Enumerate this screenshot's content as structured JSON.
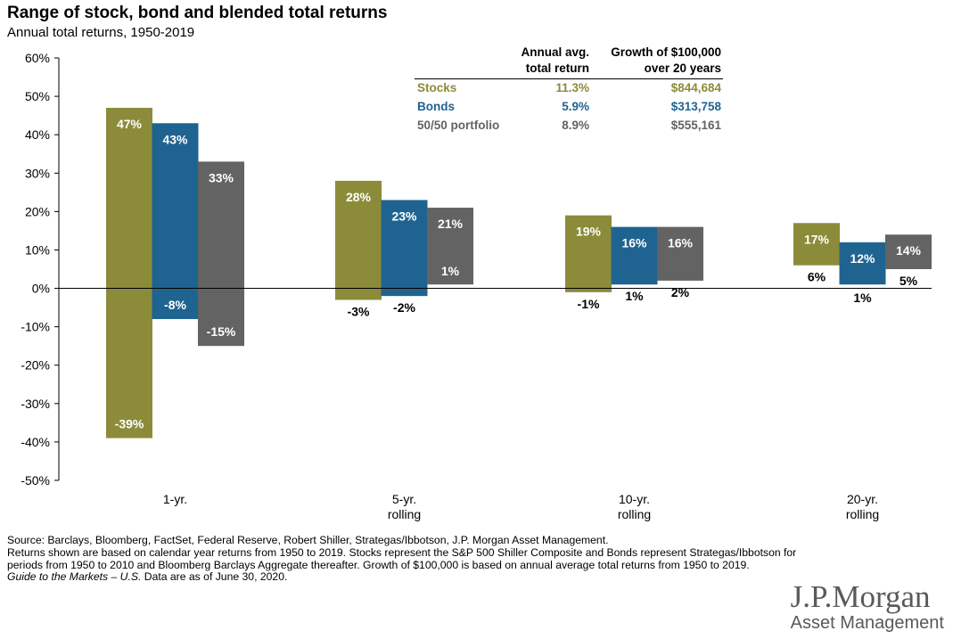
{
  "title": "Range of stock, bond and blended total returns",
  "subtitle": "Annual total returns, 1950-2019",
  "colors": {
    "stocks": "#8b8b3a",
    "bonds": "#1f6490",
    "blend": "#636363"
  },
  "table": {
    "headers": [
      [
        "Annual avg.",
        "total return"
      ],
      [
        "Growth of $100,000",
        "over 20 years"
      ]
    ],
    "rows": [
      {
        "label": "Stocks",
        "avg": "11.3%",
        "growth": "$844,684",
        "color": "#8b8b3a"
      },
      {
        "label": "Bonds",
        "avg": "5.9%",
        "growth": "$313,758",
        "color": "#1f6490"
      },
      {
        "label": "50/50 portfolio",
        "avg": "8.9%",
        "growth": "$555,161",
        "color": "#636363"
      }
    ]
  },
  "chart_data": {
    "type": "bar",
    "subtype": "floating-range",
    "categories": [
      [
        "1-yr."
      ],
      [
        "5-yr.",
        "rolling"
      ],
      [
        "10-yr.",
        "rolling"
      ],
      [
        "20-yr.",
        "rolling"
      ]
    ],
    "series": [
      {
        "name": "Stocks",
        "low": [
          -39,
          -3,
          -1,
          6
        ],
        "high": [
          47,
          28,
          19,
          17
        ],
        "low_labels": [
          "-39%",
          "-3%",
          "-1%",
          "6%"
        ],
        "high_labels": [
          "47%",
          "28%",
          "19%",
          "17%"
        ]
      },
      {
        "name": "Bonds",
        "low": [
          -8,
          -2,
          1,
          1
        ],
        "high": [
          43,
          23,
          16,
          12
        ],
        "low_labels": [
          "-8%",
          "-2%",
          "1%",
          "1%"
        ],
        "high_labels": [
          "43%",
          "23%",
          "16%",
          "12%"
        ]
      },
      {
        "name": "50/50 portfolio",
        "low": [
          -15,
          1,
          2,
          5
        ],
        "high": [
          33,
          21,
          16,
          14
        ],
        "low_labels": [
          "-15%",
          "1%",
          "2%",
          "5%"
        ],
        "high_labels": [
          "33%",
          "21%",
          "16%",
          "14%"
        ]
      }
    ],
    "ylim": [
      -50,
      60
    ],
    "yticks": [
      -50,
      -40,
      -30,
      -20,
      -10,
      0,
      10,
      20,
      30,
      40,
      50,
      60
    ],
    "ytick_labels": [
      "-50%",
      "-40%",
      "-30%",
      "-20%",
      "-10%",
      "0%",
      "10%",
      "20%",
      "30%",
      "40%",
      "50%",
      "60%"
    ]
  },
  "footnotes": [
    "Source: Barclays, Bloomberg, FactSet, Federal Reserve, Robert Shiller, Strategas/Ibbotson, J.P. Morgan Asset Management.",
    "Returns shown are based on calendar year returns from 1950 to 2019. Stocks represent the S&P 500 Shiller Composite and Bonds represent Strategas/Ibbotson for periods from 1950 to 2010 and Bloomberg Barclays Aggregate thereafter. Growth of $100,000 is based on annual average total returns from 1950 to 2019."
  ],
  "footnote_guide": "Guide to the Markets – U.S.",
  "footnote_guide_tail": " Data are as of June 30, 2020.",
  "logo": {
    "brand": "J.P.Morgan",
    "sub": "Asset Management"
  }
}
